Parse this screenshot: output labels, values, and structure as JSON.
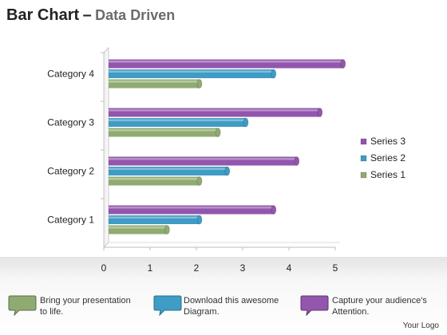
{
  "header": {
    "title_main": "Bar Chart",
    "title_dash": "–",
    "title_sub": "Data Driven"
  },
  "chart_data": {
    "type": "bar",
    "orientation": "horizontal",
    "categories": [
      "Category 1",
      "Category 2",
      "Category 3",
      "Category 4"
    ],
    "series": [
      {
        "name": "Series 1",
        "values": [
          1.3,
          2.0,
          2.4,
          2.0
        ],
        "color": "#8fab72"
      },
      {
        "name": "Series 2",
        "values": [
          2.0,
          2.6,
          3.0,
          3.6
        ],
        "color": "#3f9cc4"
      },
      {
        "name": "Series 3",
        "values": [
          3.6,
          4.1,
          4.6,
          5.1
        ],
        "color": "#9256ad"
      }
    ],
    "x_ticks": [
      "0",
      "1",
      "2",
      "3",
      "4",
      "5"
    ],
    "xlim": [
      0,
      5
    ],
    "legend_position": "right",
    "grid": false
  },
  "footer": {
    "items": [
      {
        "text_line1": "Bring your presentation",
        "text_line2": "to life.",
        "color": "#8fab72"
      },
      {
        "text_line1": "Download this awesome",
        "text_line2": "Diagram.",
        "color": "#3f9cc4"
      },
      {
        "text_line1": "Capture your audience's",
        "text_line2": "Attention.",
        "color": "#9256ad"
      }
    ],
    "logo": "Your Logo"
  }
}
